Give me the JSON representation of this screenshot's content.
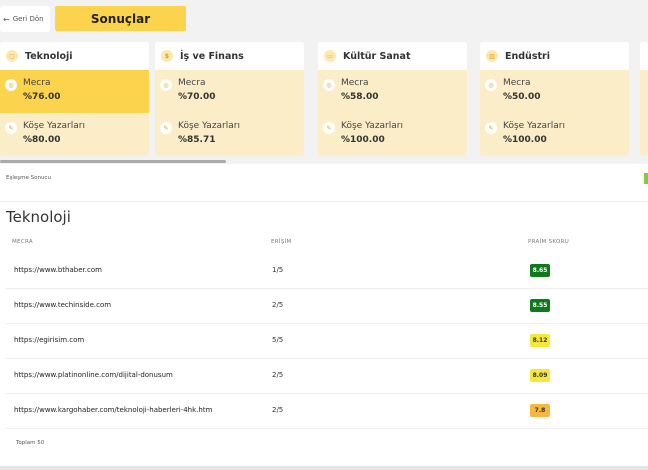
{
  "header": {
    "back_label": "Geri Dön",
    "back_icon": "arrow-left-icon",
    "title": "Sonuçlar"
  },
  "categories": [
    {
      "name": "Teknoloji",
      "icon": "chip-icon",
      "mecra_label": "Mecra",
      "mecra_value": "%76.00",
      "kose_label": "Köşe Yazarları",
      "kose_value": "%80.00"
    },
    {
      "name": "İş ve Finans",
      "icon": "dollar-icon",
      "mecra_label": "Mecra",
      "mecra_value": "%70.00",
      "kose_label": "Köşe Yazarları",
      "kose_value": "%85.71"
    },
    {
      "name": "Kültür Sanat",
      "icon": "palette-icon",
      "mecra_label": "Mecra",
      "mecra_value": "%58.00",
      "kose_label": "Köşe Yazarları",
      "kose_value": "%100.00"
    },
    {
      "name": "Endüstri",
      "icon": "factory-icon",
      "mecra_label": "Mecra",
      "mecra_value": "%50.00",
      "kose_label": "Köşe Yazarları",
      "kose_value": "%100.00"
    }
  ],
  "results": {
    "match_label": "Eşleşme Sonucu",
    "section_title": "Teknoloji",
    "columns": {
      "mecra": "MECRA",
      "erisim": "ERİŞİM",
      "skor": "PRAİM SKORU"
    },
    "rows": [
      {
        "url": "https://www.bthaber.com",
        "reach": "1/5",
        "score": "8.65",
        "score_color": "#0f7a1b"
      },
      {
        "url": "https://www.techinside.com",
        "reach": "2/5",
        "score": "8.55",
        "score_color": "#0f7a1b"
      },
      {
        "url": "https://egirisim.com",
        "reach": "5/5",
        "score": "8.12",
        "score_color": "#f6e83a"
      },
      {
        "url": "https://www.platinonline.com/dijital-donusum",
        "reach": "2/5",
        "score": "8.09",
        "score_color": "#f6e83a"
      },
      {
        "url": "https://www.kargohaber.com/teknoloji-haberleri-4hk.htm",
        "reach": "2/5",
        "score": "7.8",
        "score_color": "#f5b942"
      }
    ],
    "total_label": "Toplam 50"
  },
  "colors": {
    "accent": "#fcd34d",
    "card_tint": "#faedc7",
    "score_green": "#0f7a1b",
    "score_yellow": "#f6e83a",
    "score_orange": "#f5b942"
  }
}
